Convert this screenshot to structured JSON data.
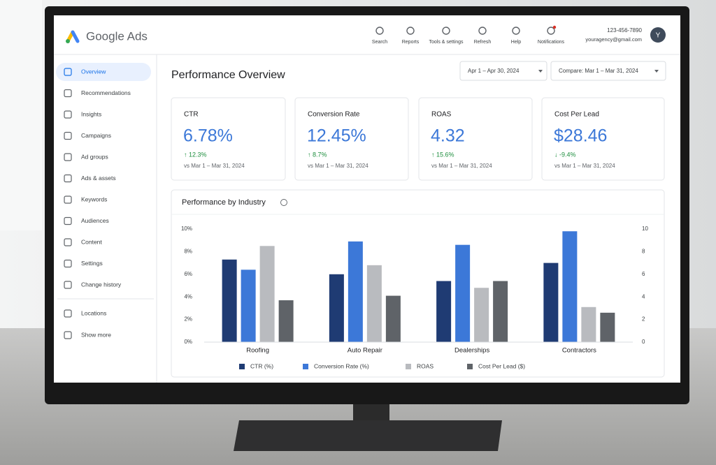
{
  "header": {
    "brand": "Google Ads",
    "tools": [
      "Search",
      "Reports",
      "Tools & settings",
      "Refresh",
      "Help",
      "Notifications"
    ],
    "phone": "123-456-7890",
    "email": "youragency@gmail.com",
    "avatar": "Y"
  },
  "sidebar": {
    "items": [
      "Overview",
      "Recommendations",
      "Insights",
      "Campaigns",
      "Ad groups",
      "Ads & assets",
      "Keywords",
      "Audiences",
      "Content",
      "Settings",
      "Change history"
    ],
    "extra": [
      "Locations",
      "Show more"
    ]
  },
  "page_title": "Performance Overview",
  "date_range": "Apr 1 – Apr 30, 2024",
  "compare": "Compare: Mar 1 – Mar 31, 2024",
  "kpis": [
    {
      "label": "CTR",
      "value": "6.78%",
      "change": "↑ 12.3%",
      "period": "vs Mar 1 – Mar 31, 2024"
    },
    {
      "label": "Conversion Rate",
      "value": "12.45%",
      "change": "↑ 8.7%",
      "period": "vs Mar 1 – Mar 31, 2024"
    },
    {
      "label": "ROAS",
      "value": "4.32",
      "change": "↑ 15.6%",
      "period": "vs Mar 1 – Mar 31, 2024"
    },
    {
      "label": "Cost Per Lead",
      "value": "$28.46",
      "change": "↓ -9.4%",
      "period": "vs Mar 1 – Mar 31, 2024"
    }
  ],
  "chart_data": {
    "type": "bar",
    "title": "Performance by Industry",
    "categories": [
      "Roofing",
      "Auto Repair",
      "Dealerships",
      "Contractors"
    ],
    "series": [
      {
        "name": "CTR (%)",
        "color": "#1f3b73",
        "values": [
          7.3,
          6.0,
          5.4,
          7.0
        ]
      },
      {
        "name": "Conversion Rate (%)",
        "color": "#3c78d8",
        "values": [
          6.4,
          8.9,
          8.6,
          9.8
        ]
      },
      {
        "name": "ROAS",
        "color": "#b9bbbf",
        "axis": "y2",
        "values": [
          8.5,
          6.8,
          4.8,
          3.1
        ]
      },
      {
        "name": "Cost Per Lead ($)",
        "color": "#5f6368",
        "axis": "y2",
        "values": [
          3.7,
          4.1,
          5.4,
          2.6
        ]
      }
    ],
    "ylim": [
      0,
      10
    ],
    "yticks": [
      {
        "value": 0,
        "label": "0%"
      },
      {
        "value": 2,
        "label": "2%"
      },
      {
        "value": 4,
        "label": "4%"
      },
      {
        "value": 6,
        "label": "6%"
      },
      {
        "value": 8,
        "label": "8%"
      },
      {
        "value": 10,
        "label": "10%"
      }
    ],
    "y2lim": [
      0,
      10
    ],
    "y2ticks": [
      0,
      2,
      4,
      6,
      8,
      10
    ],
    "grid": false,
    "legend": "bottom"
  }
}
